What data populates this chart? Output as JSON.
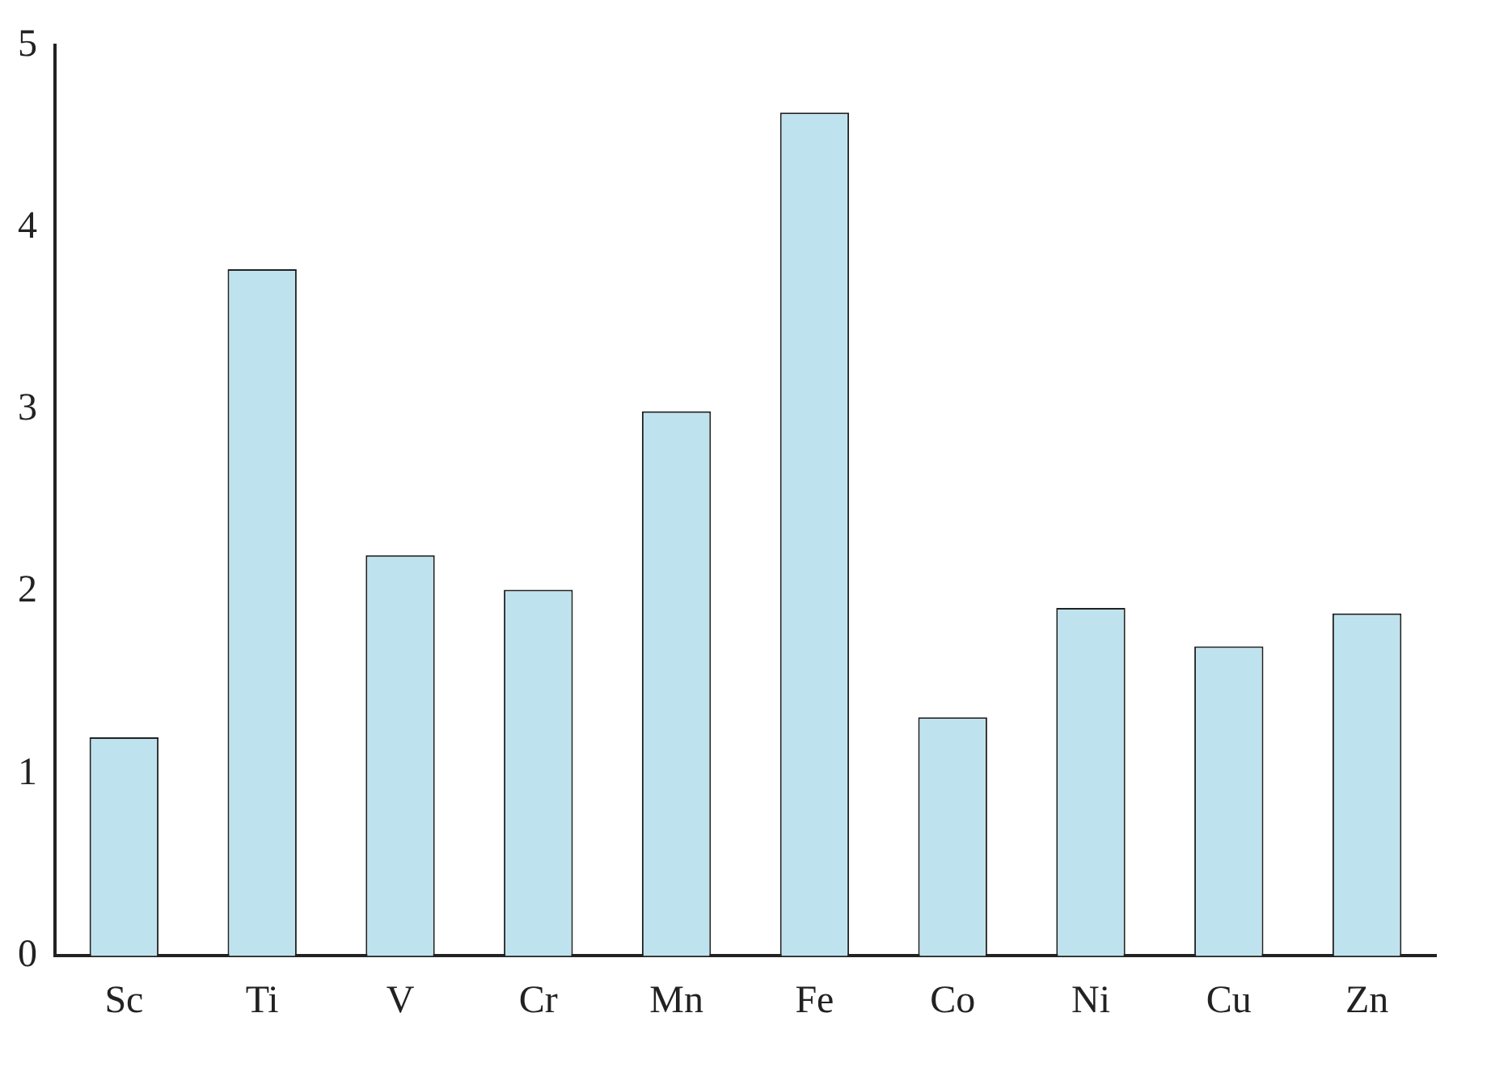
{
  "chart_data": {
    "type": "bar",
    "categories": [
      "Sc",
      "Ti",
      "V",
      "Cr",
      "Mn",
      "Fe",
      "Co",
      "Ni",
      "Cu",
      "Zn"
    ],
    "values": [
      1.2,
      3.77,
      2.2,
      2.01,
      2.99,
      4.63,
      1.31,
      1.91,
      1.7,
      1.88
    ],
    "color": "#bfe3ee",
    "ylim": [
      0,
      5
    ],
    "yticks": [
      0,
      1,
      2,
      3,
      4,
      5
    ],
    "grid": false,
    "legend": false
  }
}
